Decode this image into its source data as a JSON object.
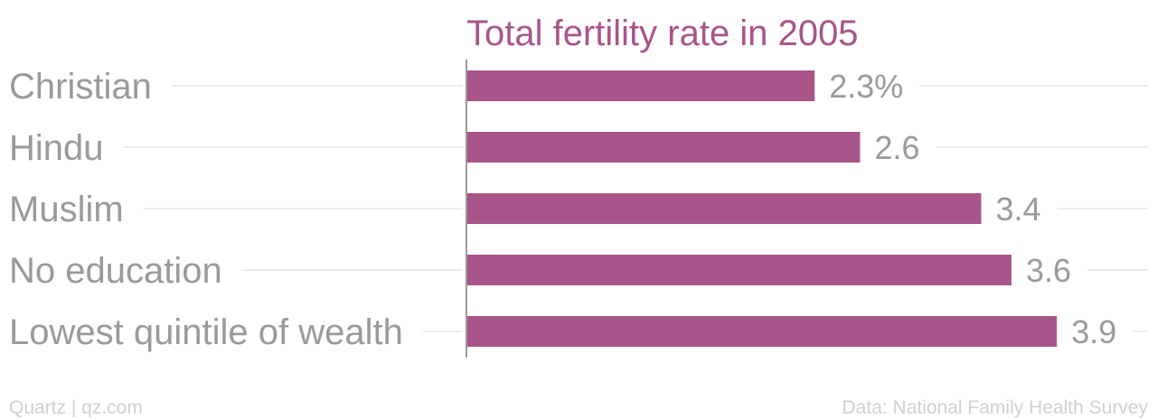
{
  "chart_data": {
    "type": "bar",
    "orientation": "horizontal",
    "title": "Total fertility rate in 2005",
    "categories": [
      "Christian",
      "Hindu",
      "Muslim",
      "No education",
      "Lowest quintile of wealth"
    ],
    "values": [
      2.3,
      2.6,
      3.4,
      3.6,
      3.9
    ],
    "value_labels": [
      "2.3%",
      "2.6",
      "3.4",
      "3.6",
      "3.9"
    ],
    "xlim": [
      0,
      4.0
    ],
    "bar_color": "#a8558a",
    "grid": false
  },
  "footer": {
    "source_left": "Quartz | qz.com",
    "source_right": "Data: National Family Health Survey"
  }
}
